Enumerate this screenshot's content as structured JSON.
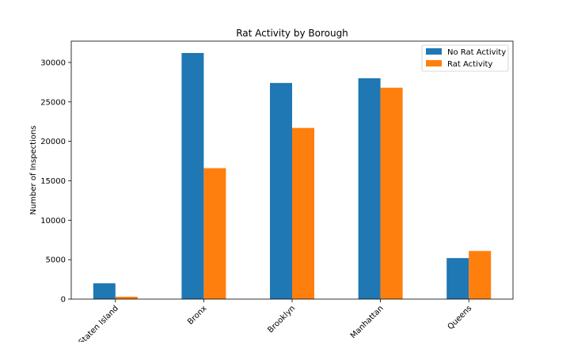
{
  "chart_data": {
    "type": "bar",
    "title": "Rat Activity by Borough",
    "xlabel": "",
    "ylabel": "Number of Inspections",
    "categories": [
      "Staten Island",
      "Bronx",
      "Brooklyn",
      "Manhattan",
      "Queens"
    ],
    "series": [
      {
        "name": "No Rat Activity",
        "color": "#1f77b4",
        "values": [
          2000,
          31200,
          27400,
          28000,
          5200
        ]
      },
      {
        "name": "Rat Activity",
        "color": "#ff7f0e",
        "values": [
          300,
          16600,
          21700,
          26800,
          6100
        ]
      }
    ],
    "yticks": [
      0,
      5000,
      10000,
      15000,
      20000,
      25000,
      30000
    ],
    "ylim": [
      0,
      32700
    ],
    "grid": false,
    "legend_position": "top-right"
  }
}
